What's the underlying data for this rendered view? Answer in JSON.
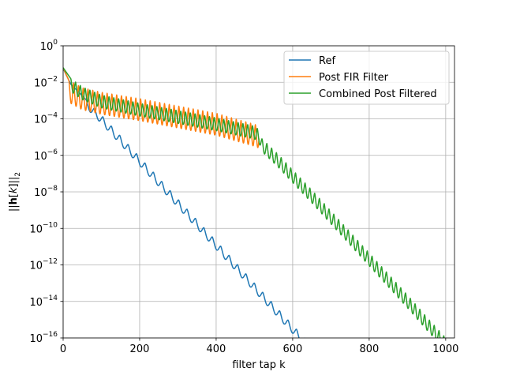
{
  "chart_data": {
    "type": "line",
    "title": "",
    "xlabel": "filter tap k",
    "ylabel_parts": {
      "open": "||",
      "bold": "h",
      "mid": "[",
      "ital": "k",
      "close": "]||",
      "sub": "2"
    },
    "xlim": [
      0,
      1023
    ],
    "ylim": [
      1e-16,
      1
    ],
    "yscale": "log",
    "grid": true,
    "legend_position": "upper right",
    "x_ticks": [
      {
        "value": 0,
        "label": "0"
      },
      {
        "value": 200,
        "label": "200"
      },
      {
        "value": 400,
        "label": "400"
      },
      {
        "value": 600,
        "label": "600"
      },
      {
        "value": 800,
        "label": "800"
      },
      {
        "value": 1000,
        "label": "1000"
      }
    ],
    "y_ticks": [
      {
        "value": 0,
        "base": "10",
        "exp": "0"
      },
      {
        "value": -2,
        "base": "10",
        "exp": "−2"
      },
      {
        "value": -4,
        "base": "10",
        "exp": "−4"
      },
      {
        "value": -6,
        "base": "10",
        "exp": "−6"
      },
      {
        "value": -8,
        "base": "10",
        "exp": "−8"
      },
      {
        "value": -10,
        "base": "10",
        "exp": "−10"
      },
      {
        "value": -12,
        "base": "10",
        "exp": "−12"
      },
      {
        "value": -14,
        "base": "10",
        "exp": "−14"
      },
      {
        "value": -16,
        "base": "10",
        "exp": "−16"
      }
    ],
    "series": [
      {
        "name": "Ref",
        "color": "#1f77b4",
        "x": [
          0,
          20,
          60,
          100,
          150,
          200,
          250,
          300,
          350,
          400,
          450,
          500,
          550,
          600,
          640
        ],
        "y_log10": [
          -1.25,
          -2.1,
          -2.95,
          -3.8,
          -4.95,
          -6.1,
          -7.25,
          -8.4,
          -9.55,
          -10.7,
          -11.85,
          -13.0,
          -14.15,
          -15.3,
          -16.2
        ],
        "ripple_period": 22,
        "ripple_depth": 0.45,
        "ripple_start": 60
      },
      {
        "name": "Post FIR Filter",
        "color": "#ff7f0e",
        "x": [
          0,
          15,
          50,
          100,
          200,
          300,
          400,
          500,
          512
        ],
        "y_log10": [
          -1.2,
          -1.9,
          -2.3,
          -2.55,
          -2.9,
          -3.3,
          -3.7,
          -4.3,
          -4.4
        ],
        "ripple_period": 12.5,
        "ripple_depth": 1.2,
        "ripple_start": 15
      },
      {
        "name": "Combined Post Filtered",
        "color": "#2ca02c",
        "x": [
          0,
          20,
          50,
          100,
          200,
          300,
          400,
          500,
          512,
          520,
          560,
          600,
          650,
          700,
          750,
          800,
          850,
          900,
          950,
          1000
        ],
        "y_log10": [
          -1.2,
          -1.8,
          -2.25,
          -2.7,
          -3.15,
          -3.55,
          -3.95,
          -4.4,
          -4.6,
          -5.1,
          -5.9,
          -6.8,
          -7.9,
          -9.05,
          -10.2,
          -11.35,
          -12.5,
          -13.65,
          -14.85,
          -16.0
        ],
        "ripple_period": 12.5,
        "ripple_depth": 0.7,
        "ripple_start": 20
      }
    ]
  }
}
